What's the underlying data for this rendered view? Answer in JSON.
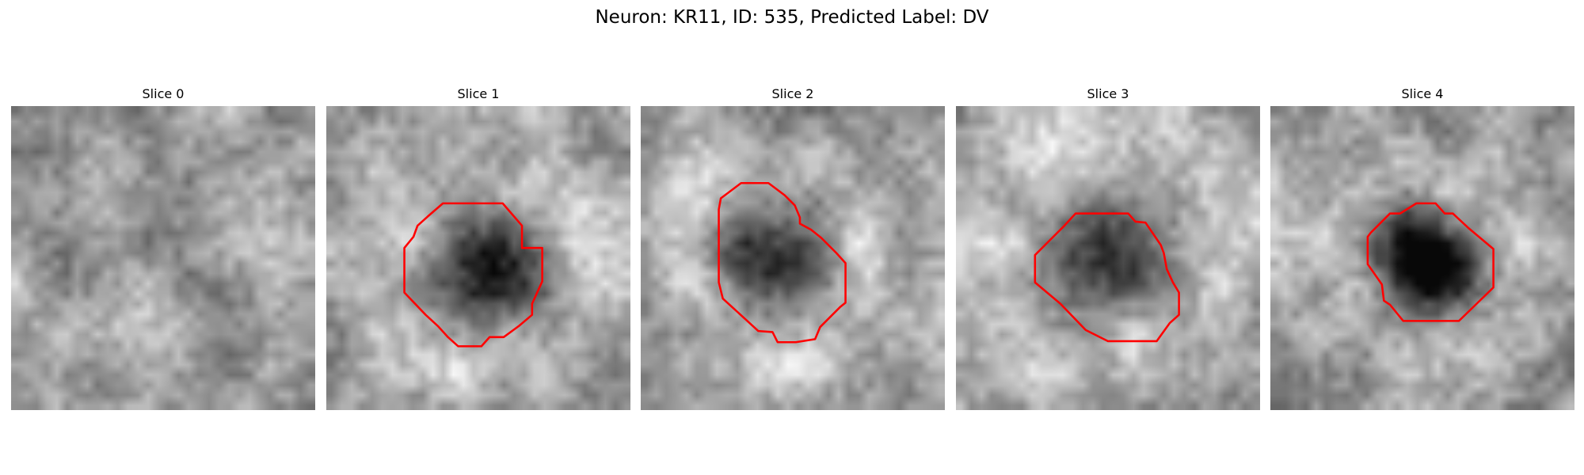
{
  "figure": {
    "title": "Neuron: KR11, ID: 535, Predicted Label: DV"
  },
  "colors": {
    "contour": "#ff0000",
    "background": "#ffffff"
  },
  "image": {
    "colormap": "gray",
    "grid_size": 30
  },
  "slices": [
    {
      "title": "Slice 0",
      "has_contour": false,
      "seed": 11,
      "blob": null,
      "contour": []
    },
    {
      "title": "Slice 1",
      "has_contour": true,
      "seed": 23,
      "blob": {
        "cx": 15,
        "cy": 16.5,
        "r": 6,
        "darkness": 0.55
      },
      "contour": [
        [
          10,
          10.9
        ],
        [
          11.5,
          9.6
        ],
        [
          17.4,
          9.6
        ],
        [
          19.3,
          11.8
        ],
        [
          19.3,
          14
        ],
        [
          21.3,
          14
        ],
        [
          21.3,
          17.3
        ],
        [
          20.3,
          19.5
        ],
        [
          20.3,
          20.6
        ],
        [
          19,
          21.7
        ],
        [
          17.5,
          22.8
        ],
        [
          16.1,
          22.8
        ],
        [
          15.3,
          23.7
        ],
        [
          13,
          23.7
        ],
        [
          12,
          22.8
        ],
        [
          11,
          21.7
        ],
        [
          9.8,
          20.6
        ],
        [
          7.7,
          18.4
        ],
        [
          7.7,
          14
        ],
        [
          8.6,
          12.9
        ],
        [
          9,
          11.8
        ]
      ]
    },
    {
      "title": "Slice 2",
      "has_contour": true,
      "seed": 37,
      "blob": {
        "cx": 12.5,
        "cy": 14.5,
        "r": 5.8,
        "darkness": 0.55
      },
      "contour": [
        [
          7.9,
          9.1
        ],
        [
          9.9,
          7.6
        ],
        [
          12.6,
          7.6
        ],
        [
          14.2,
          8.8
        ],
        [
          15.2,
          9.8
        ],
        [
          15.7,
          11
        ],
        [
          15.7,
          11.6
        ],
        [
          16.8,
          12.2
        ],
        [
          17.8,
          13
        ],
        [
          19.3,
          14.5
        ],
        [
          20.2,
          15.5
        ],
        [
          20.2,
          19.4
        ],
        [
          19.7,
          19.8
        ],
        [
          17.7,
          21.8
        ],
        [
          17.2,
          23
        ],
        [
          15.3,
          23.3
        ],
        [
          13.5,
          23.3
        ],
        [
          13,
          22.3
        ],
        [
          11.6,
          22.2
        ],
        [
          10.4,
          21.1
        ],
        [
          8.1,
          19
        ],
        [
          7.7,
          17.4
        ],
        [
          7.7,
          10.2
        ]
      ]
    },
    {
      "title": "Slice 3",
      "has_contour": true,
      "seed": 51,
      "blob": {
        "cx": 14.5,
        "cy": 13.5,
        "r": 6.8,
        "darkness": 0.5
      },
      "contour": [
        [
          9.1,
          13.4
        ],
        [
          10.7,
          11.8
        ],
        [
          11.8,
          10.6
        ],
        [
          14.5,
          10.6
        ],
        [
          17,
          10.6
        ],
        [
          17.7,
          11.4
        ],
        [
          18.7,
          11.5
        ],
        [
          20.2,
          13.7
        ],
        [
          20.5,
          14.5
        ],
        [
          20.8,
          16.1
        ],
        [
          21.4,
          17.4
        ],
        [
          22,
          18.4
        ],
        [
          22,
          20.6
        ],
        [
          21.1,
          21.4
        ],
        [
          19.8,
          23.2
        ],
        [
          15,
          23.2
        ],
        [
          12.8,
          22.1
        ],
        [
          10.3,
          19.5
        ],
        [
          7.8,
          17.4
        ],
        [
          7.8,
          14.7
        ]
      ]
    },
    {
      "title": "Slice 4",
      "has_contour": true,
      "seed": 67,
      "blob": {
        "cx": 15,
        "cy": 14.8,
        "r": 5.4,
        "darkness": 0.75
      },
      "contour": [
        [
          9.9,
          12.5
        ],
        [
          11.8,
          10.6
        ],
        [
          12.8,
          10.6
        ],
        [
          14.4,
          9.6
        ],
        [
          16.3,
          9.6
        ],
        [
          17.2,
          10.6
        ],
        [
          18,
          10.6
        ],
        [
          19.5,
          12
        ],
        [
          22,
          14.1
        ],
        [
          22,
          17.9
        ],
        [
          18.6,
          21.2
        ],
        [
          13.1,
          21.2
        ],
        [
          11.8,
          19.6
        ],
        [
          11.2,
          19.2
        ],
        [
          11,
          17.6
        ],
        [
          9.6,
          15.6
        ],
        [
          9.6,
          12.9
        ]
      ]
    }
  ]
}
